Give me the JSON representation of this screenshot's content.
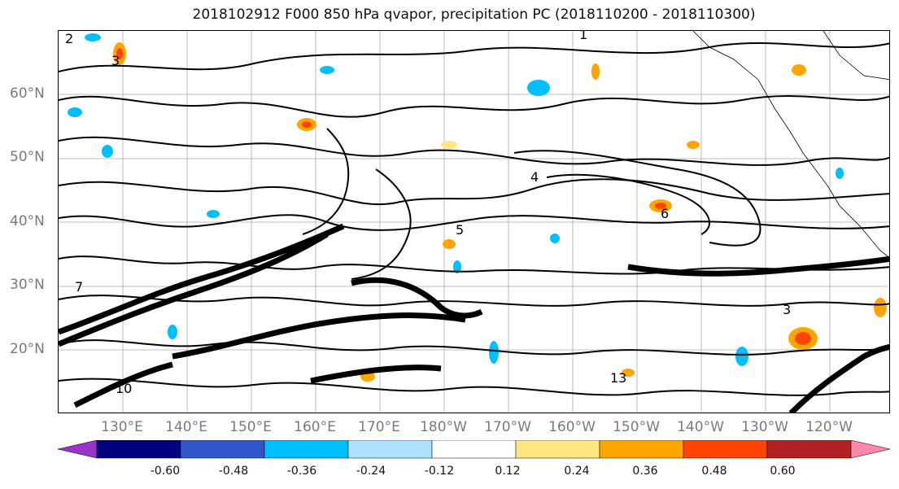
{
  "title": "2018102912 F000 850 hPa qvapor, precipitation PC (2018110200 - 2018110300)",
  "lat_labels": [
    "60°N",
    "50°N",
    "40°N",
    "30°N",
    "20°N"
  ],
  "lon_labels": [
    "130°E",
    "140°E",
    "150°E",
    "160°E",
    "170°E",
    "180°W",
    "170°W",
    "160°W",
    "150°W",
    "140°W",
    "130°W",
    "120°W"
  ],
  "colorbar": {
    "colors": [
      "#9933cc",
      "#000080",
      "#3355cc",
      "#00bfff",
      "#b0e2ff",
      "#ffffff",
      "#ffe680",
      "#ffa500",
      "#ff4500",
      "#b22222",
      "#ff88aa"
    ],
    "tick_labels": [
      "-0.60",
      "-0.48",
      "-0.36",
      "-0.24",
      "-0.12",
      "0.12",
      "0.24",
      "0.36",
      "0.48",
      "0.60"
    ],
    "extend": "both"
  },
  "contour_labels": [
    "2",
    "3",
    "1",
    "4",
    "5",
    "6",
    "7",
    "13",
    "10",
    "3"
  ],
  "shading": {
    "negative_color": "#00bfff",
    "positive_colors": [
      "#ffe680",
      "#ffa500",
      "#ff4500"
    ]
  }
}
